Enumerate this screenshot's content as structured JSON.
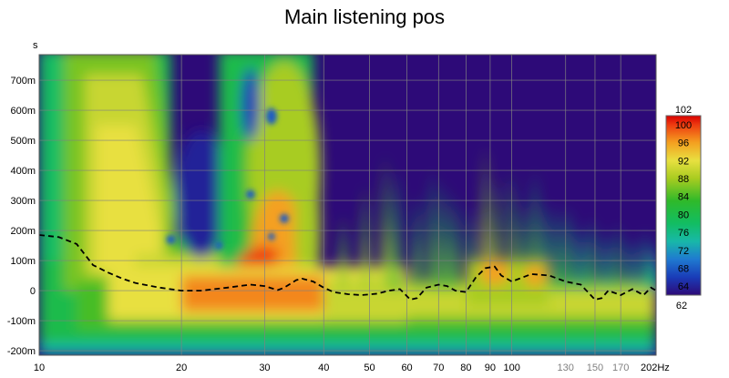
{
  "chart_data": {
    "type": "heatmap",
    "title": "Main listening pos",
    "ylabel": "s",
    "x_unit": "Hz",
    "x_scale": "log",
    "xlim": [
      10,
      202
    ],
    "ylim": [
      -0.215,
      0.785
    ],
    "x_ticks": [
      {
        "v": 10,
        "label": "10",
        "major": true
      },
      {
        "v": 20,
        "label": "20",
        "major": true
      },
      {
        "v": 30,
        "label": "30",
        "major": true
      },
      {
        "v": 40,
        "label": "40",
        "major": true
      },
      {
        "v": 50,
        "label": "50",
        "major": true
      },
      {
        "v": 60,
        "label": "60",
        "major": true
      },
      {
        "v": 70,
        "label": "70",
        "major": true
      },
      {
        "v": 80,
        "label": "80",
        "major": true
      },
      {
        "v": 90,
        "label": "90",
        "major": true
      },
      {
        "v": 100,
        "label": "100",
        "major": true
      },
      {
        "v": 130,
        "label": "130",
        "major": false
      },
      {
        "v": 150,
        "label": "150",
        "major": false
      },
      {
        "v": 170,
        "label": "170",
        "major": false
      },
      {
        "v": 202,
        "label": "202Hz",
        "major": true
      }
    ],
    "y_ticks": [
      {
        "v": 0.7,
        "label": "700m"
      },
      {
        "v": 0.6,
        "label": "600m"
      },
      {
        "v": 0.5,
        "label": "500m"
      },
      {
        "v": 0.4,
        "label": "400m"
      },
      {
        "v": 0.3,
        "label": "300m"
      },
      {
        "v": 0.2,
        "label": "200m"
      },
      {
        "v": 0.1,
        "label": "100m"
      },
      {
        "v": 0.0,
        "label": "0"
      },
      {
        "v": -0.1,
        "label": "-100m"
      },
      {
        "v": -0.2,
        "label": "-200m"
      }
    ],
    "colorbar": {
      "min": 62,
      "max": 102,
      "labels": [
        "102",
        "100",
        "96",
        "92",
        "88",
        "84",
        "80",
        "76",
        "72",
        "68",
        "64",
        "62"
      ],
      "stops": [
        {
          "v": 62,
          "color": "#2d0a78"
        },
        {
          "v": 66,
          "color": "#1a3cb8"
        },
        {
          "v": 70,
          "color": "#1f7ad0"
        },
        {
          "v": 74,
          "color": "#18b8a8"
        },
        {
          "v": 78,
          "color": "#12bd62"
        },
        {
          "v": 83,
          "color": "#2fb92a"
        },
        {
          "v": 88,
          "color": "#a8cc20"
        },
        {
          "v": 92,
          "color": "#e8e040"
        },
        {
          "v": 96,
          "color": "#f4a020"
        },
        {
          "v": 100,
          "color": "#ee3a10"
        },
        {
          "v": 102,
          "color": "#d80000"
        }
      ]
    },
    "series": [
      {
        "style": "dashed",
        "points": [
          [
            10,
            0.185
          ],
          [
            11,
            0.178
          ],
          [
            12,
            0.155
          ],
          [
            13,
            0.085
          ],
          [
            14,
            0.06
          ],
          [
            15,
            0.04
          ],
          [
            16,
            0.025
          ],
          [
            18,
            0.01
          ],
          [
            20,
            0.0
          ],
          [
            22,
            0.0
          ],
          [
            25,
            0.01
          ],
          [
            28,
            0.02
          ],
          [
            30,
            0.015
          ],
          [
            31,
            0.008
          ],
          [
            32,
            0.002
          ],
          [
            33,
            0.01
          ],
          [
            35,
            0.035
          ],
          [
            36,
            0.04
          ],
          [
            38,
            0.03
          ],
          [
            40,
            0.01
          ],
          [
            42,
            -0.005
          ],
          [
            45,
            -0.012
          ],
          [
            48,
            -0.015
          ],
          [
            52,
            -0.01
          ],
          [
            55,
            0.0
          ],
          [
            58,
            0.005
          ],
          [
            61,
            -0.03
          ],
          [
            63,
            -0.025
          ],
          [
            66,
            0.01
          ],
          [
            70,
            0.02
          ],
          [
            73,
            0.015
          ],
          [
            76,
            0.0
          ],
          [
            80,
            -0.005
          ],
          [
            84,
            0.045
          ],
          [
            88,
            0.075
          ],
          [
            92,
            0.08
          ],
          [
            95,
            0.05
          ],
          [
            100,
            0.03
          ],
          [
            110,
            0.055
          ],
          [
            120,
            0.05
          ],
          [
            130,
            0.03
          ],
          [
            140,
            0.02
          ],
          [
            150,
            -0.03
          ],
          [
            155,
            -0.025
          ],
          [
            160,
            0.0
          ],
          [
            170,
            -0.015
          ],
          [
            180,
            0.005
          ],
          [
            190,
            -0.015
          ],
          [
            197,
            0.01
          ],
          [
            202,
            0.0
          ]
        ]
      }
    ],
    "colors": {
      "plot_background": "#2d0a78",
      "grid": "#808080"
    }
  }
}
